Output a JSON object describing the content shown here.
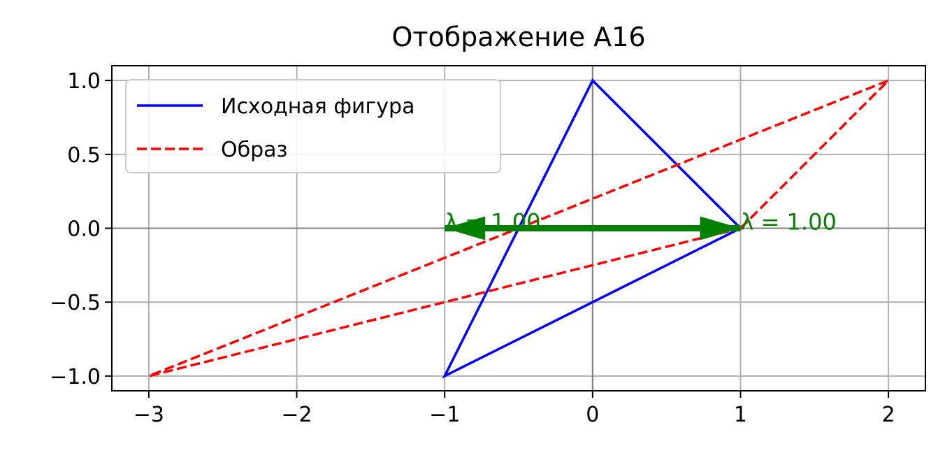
{
  "chart_data": {
    "type": "line",
    "title": "Отображение A16",
    "xlabel": "",
    "ylabel": "",
    "xlim": [
      -3.25,
      2.25
    ],
    "ylim": [
      -1.1,
      1.1
    ],
    "xticks": [
      -3,
      -2,
      -1,
      0,
      1,
      2
    ],
    "yticks": [
      -1.0,
      -0.5,
      0.0,
      0.5,
      1.0
    ],
    "xtick_labels": [
      "−3",
      "−2",
      "−1",
      "0",
      "1",
      "2"
    ],
    "ytick_labels": [
      "−1.0",
      "−0.5",
      "0.0",
      "0.5",
      "1.0"
    ],
    "grid": true,
    "legend_position": "top-left",
    "series": [
      {
        "name": "Исходная фигура",
        "color": "#0000ff",
        "style": "solid",
        "x": [
          1,
          0,
          -1,
          1
        ],
        "y": [
          0,
          1,
          -1,
          0
        ]
      },
      {
        "name": "Образ",
        "color": "#ff0000",
        "style": "dashed",
        "x": [
          1,
          2,
          -3,
          1
        ],
        "y": [
          0,
          1,
          -1,
          0
        ]
      }
    ],
    "eigenvectors": {
      "color": "#008000",
      "origin": [
        1,
        0
      ],
      "vectors": [
        {
          "dx": -2,
          "dy": 0,
          "label": "λ = 1.00"
        },
        {
          "dx": 0,
          "dy": 0,
          "label": "λ = 1.00"
        }
      ]
    }
  }
}
